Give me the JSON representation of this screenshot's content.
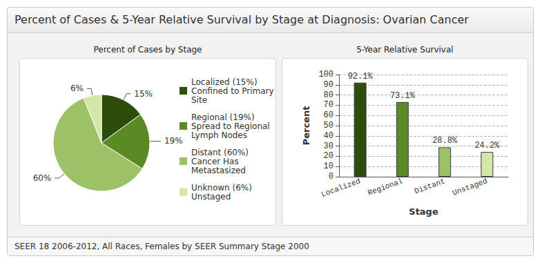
{
  "title": "Percent of Cases & 5-Year Relative Survival by Stage at Diagnosis: Ovarian Cancer",
  "source": "SEER 18 2006-2012, All Races, Females by SEER Summary Stage 2000",
  "chart_data": [
    {
      "type": "pie",
      "title": "Percent of Cases by Stage",
      "categories": [
        "Localized (15%)",
        "Regional (19%)",
        "Distant (60%)",
        "Unknown (6%)"
      ],
      "descriptions": [
        "Confined to Primary Site",
        "Spread to Regional Lymph Nodes",
        "Cancer Has Metastasized",
        "Unstaged"
      ],
      "values": [
        15,
        19,
        60,
        6
      ],
      "value_labels": [
        "15%",
        "19%",
        "60%",
        "6%"
      ],
      "colors": [
        "#2e4d0c",
        "#5b8a25",
        "#9dc166",
        "#d2e7a8"
      ],
      "data_labels": true,
      "legend": "right"
    },
    {
      "type": "bar",
      "title": "5-Year Relative Survival",
      "categories": [
        "Localized",
        "Regional",
        "Distant",
        "Unstaged"
      ],
      "values": [
        92.1,
        73.1,
        28.8,
        24.2
      ],
      "value_labels": [
        "92.1%",
        "73.1%",
        "28.8%",
        "24.2%"
      ],
      "colors": [
        "#2e4d0c",
        "#5b8a25",
        "#9dc166",
        "#d2e7a8"
      ],
      "xlabel": "Stage",
      "ylabel": "Percent",
      "ylim": [
        0,
        100
      ],
      "yticks": [
        0,
        10,
        20,
        30,
        40,
        50,
        60,
        70,
        80,
        90,
        100
      ],
      "grid": true,
      "data_labels": true
    }
  ]
}
